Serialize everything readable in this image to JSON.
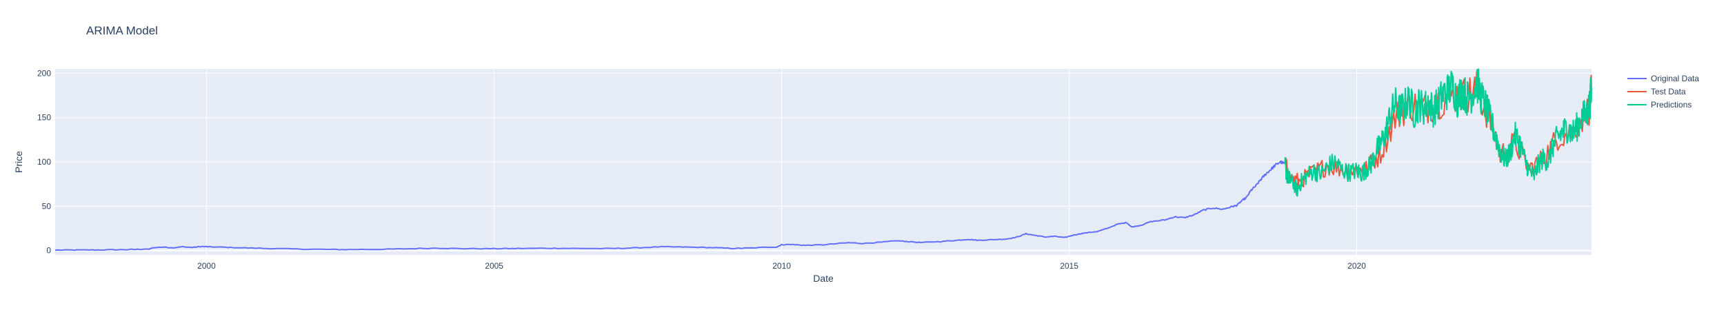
{
  "chart_data": {
    "type": "line",
    "title": "ARIMA Model",
    "xlabel": "Date",
    "ylabel": "Price",
    "x_range": [
      "1997-05-15",
      "2024-01-31"
    ],
    "ylim": [
      -5,
      205
    ],
    "x_ticks": [
      {
        "date": "2000-01-01",
        "label": "2000"
      },
      {
        "date": "2005-01-01",
        "label": "2005"
      },
      {
        "date": "2010-01-01",
        "label": "2010"
      },
      {
        "date": "2015-01-01",
        "label": "2015"
      },
      {
        "date": "2020-01-01",
        "label": "2020"
      }
    ],
    "y_ticks": [
      0,
      50,
      100,
      150,
      200
    ],
    "grid": true,
    "legend_position": "top-right",
    "series": [
      {
        "name": "Original Data",
        "color": "#636efa",
        "points": [
          [
            "1997-05-15",
            0.4
          ],
          [
            "1997-10-01",
            0.5
          ],
          [
            "1998-03-01",
            0.6
          ],
          [
            "1998-08-01",
            0.9
          ],
          [
            "1998-11-01",
            1.3
          ],
          [
            "1999-01-01",
            1.5
          ],
          [
            "1999-02-01",
            3.2
          ],
          [
            "1999-04-01",
            3.8
          ],
          [
            "1999-06-01",
            3.0
          ],
          [
            "1999-08-01",
            4.2
          ],
          [
            "1999-10-01",
            3.4
          ],
          [
            "1999-12-01",
            4.5
          ],
          [
            "2000-02-01",
            4.0
          ],
          [
            "2000-06-01",
            3.4
          ],
          [
            "2000-12-01",
            2.5
          ],
          [
            "2001-06-01",
            1.8
          ],
          [
            "2002-01-01",
            1.2
          ],
          [
            "2002-06-01",
            1.0
          ],
          [
            "2003-01-01",
            1.3
          ],
          [
            "2003-06-01",
            1.8
          ],
          [
            "2004-01-01",
            2.6
          ],
          [
            "2004-06-01",
            2.1
          ],
          [
            "2005-01-01",
            2.0
          ],
          [
            "2005-06-01",
            2.2
          ],
          [
            "2006-01-01",
            2.5
          ],
          [
            "2006-06-01",
            2.3
          ],
          [
            "2007-01-01",
            2.1
          ],
          [
            "2007-06-01",
            2.8
          ],
          [
            "2007-12-01",
            4.2
          ],
          [
            "2008-05-01",
            3.8
          ],
          [
            "2008-10-01",
            3.3
          ],
          [
            "2009-03-01",
            2.3
          ],
          [
            "2009-06-01",
            2.7
          ],
          [
            "2009-12-01",
            4.0
          ],
          [
            "2010-01-01",
            6.5
          ],
          [
            "2010-03-01",
            6.8
          ],
          [
            "2010-06-01",
            5.8
          ],
          [
            "2010-10-01",
            6.5
          ],
          [
            "2011-03-01",
            8.8
          ],
          [
            "2011-06-01",
            7.9
          ],
          [
            "2011-10-01",
            9.4
          ],
          [
            "2012-01-01",
            11.0
          ],
          [
            "2012-03-01",
            10.2
          ],
          [
            "2012-06-01",
            9.0
          ],
          [
            "2012-10-01",
            10.0
          ],
          [
            "2013-01-01",
            11.3
          ],
          [
            "2013-04-01",
            12.5
          ],
          [
            "2013-06-01",
            11.5
          ],
          [
            "2013-09-01",
            12.2
          ],
          [
            "2013-12-01",
            13.0
          ],
          [
            "2014-02-01",
            15.0
          ],
          [
            "2014-04-01",
            18.8
          ],
          [
            "2014-06-01",
            17.0
          ],
          [
            "2014-08-01",
            15.2
          ],
          [
            "2014-10-01",
            16.0
          ],
          [
            "2014-12-01",
            14.5
          ],
          [
            "2015-02-01",
            17.5
          ],
          [
            "2015-04-01",
            19.5
          ],
          [
            "2015-07-01",
            21.5
          ],
          [
            "2015-09-01",
            25.0
          ],
          [
            "2015-11-01",
            29.5
          ],
          [
            "2016-01-01",
            31.5
          ],
          [
            "2016-02-01",
            26.5
          ],
          [
            "2016-04-01",
            28.5
          ],
          [
            "2016-06-01",
            32.5
          ],
          [
            "2016-09-01",
            34.5
          ],
          [
            "2016-11-01",
            38.0
          ],
          [
            "2017-01-01",
            37.0
          ],
          [
            "2017-03-01",
            40.0
          ],
          [
            "2017-05-01",
            45.5
          ],
          [
            "2017-07-01",
            48.0
          ],
          [
            "2017-09-01",
            46.5
          ],
          [
            "2017-11-01",
            49.5
          ],
          [
            "2017-12-01",
            51.0
          ],
          [
            "2018-01-01",
            56.0
          ],
          [
            "2018-02-01",
            60.0
          ],
          [
            "2018-03-01",
            68.0
          ],
          [
            "2018-04-01",
            73.0
          ],
          [
            "2018-05-01",
            80.0
          ],
          [
            "2018-06-01",
            86.0
          ],
          [
            "2018-07-01",
            91.0
          ],
          [
            "2018-08-01",
            96.0
          ],
          [
            "2018-09-01",
            100.0
          ],
          [
            "2018-10-01",
            98.0
          ]
        ]
      },
      {
        "name": "Test Data",
        "color": "#ef553b",
        "points": [
          [
            "2018-10-01",
            98.0
          ],
          [
            "2018-11-01",
            82.0
          ],
          [
            "2019-01-01",
            78.0
          ],
          [
            "2019-04-01",
            88.0
          ],
          [
            "2019-07-01",
            96.0
          ],
          [
            "2019-10-01",
            92.0
          ],
          [
            "2020-01-01",
            90.0
          ],
          [
            "2020-03-01",
            92.0
          ],
          [
            "2020-06-01",
            110.0
          ],
          [
            "2020-09-01",
            150.0
          ],
          [
            "2020-12-01",
            165.0
          ],
          [
            "2021-03-01",
            160.0
          ],
          [
            "2021-06-01",
            168.0
          ],
          [
            "2021-09-01",
            175.0
          ],
          [
            "2021-12-01",
            176.0
          ],
          [
            "2022-02-01",
            182.0
          ],
          [
            "2022-05-01",
            145.0
          ],
          [
            "2022-07-01",
            108.0
          ],
          [
            "2022-10-01",
            122.0
          ],
          [
            "2023-01-01",
            92.0
          ],
          [
            "2023-04-01",
            104.0
          ],
          [
            "2023-07-01",
            128.0
          ],
          [
            "2023-10-01",
            134.0
          ],
          [
            "2024-01-15",
            160.0
          ],
          [
            "2024-01-31",
            180.0
          ]
        ]
      },
      {
        "name": "Predictions",
        "color": "#00cc96",
        "points": [
          [
            "2018-10-01",
            98.0
          ],
          [
            "2018-10-15",
            85.0
          ],
          [
            "2018-11-01",
            80.0
          ],
          [
            "2018-12-01",
            74.0
          ],
          [
            "2018-12-20",
            68.0
          ],
          [
            "2019-01-15",
            78.0
          ],
          [
            "2019-02-15",
            84.0
          ],
          [
            "2019-04-01",
            90.0
          ],
          [
            "2019-05-15",
            86.0
          ],
          [
            "2019-07-01",
            95.0
          ],
          [
            "2019-08-15",
            100.0
          ],
          [
            "2019-10-01",
            91.0
          ],
          [
            "2019-11-15",
            88.0
          ],
          [
            "2020-01-01",
            90.0
          ],
          [
            "2020-02-01",
            87.0
          ],
          [
            "2020-03-01",
            92.0
          ],
          [
            "2020-04-01",
            97.0
          ],
          [
            "2020-05-01",
            112.0
          ],
          [
            "2020-06-01",
            120.0
          ],
          [
            "2020-07-01",
            132.0
          ],
          [
            "2020-08-01",
            152.0
          ],
          [
            "2020-09-01",
            166.0
          ],
          [
            "2020-10-01",
            158.0
          ],
          [
            "2020-11-01",
            164.0
          ],
          [
            "2020-12-01",
            170.0
          ],
          [
            "2021-01-01",
            155.0
          ],
          [
            "2021-02-01",
            166.0
          ],
          [
            "2021-03-01",
            160.0
          ],
          [
            "2021-04-01",
            168.0
          ],
          [
            "2021-05-01",
            158.0
          ],
          [
            "2021-06-01",
            166.0
          ],
          [
            "2021-07-01",
            176.0
          ],
          [
            "2021-08-01",
            180.0
          ],
          [
            "2021-09-01",
            186.0
          ],
          [
            "2021-10-01",
            170.0
          ],
          [
            "2021-11-01",
            182.0
          ],
          [
            "2021-12-01",
            172.0
          ],
          [
            "2022-01-01",
            176.0
          ],
          [
            "2022-02-01",
            190.0
          ],
          [
            "2022-03-01",
            174.0
          ],
          [
            "2022-04-01",
            162.0
          ],
          [
            "2022-05-01",
            146.0
          ],
          [
            "2022-06-01",
            130.0
          ],
          [
            "2022-07-01",
            112.0
          ],
          [
            "2022-08-01",
            102.0
          ],
          [
            "2022-09-01",
            110.0
          ],
          [
            "2022-10-01",
            130.0
          ],
          [
            "2022-11-01",
            122.0
          ],
          [
            "2022-12-01",
            104.0
          ],
          [
            "2023-01-01",
            90.0
          ],
          [
            "2023-02-01",
            84.0
          ],
          [
            "2023-03-01",
            98.0
          ],
          [
            "2023-04-01",
            104.0
          ],
          [
            "2023-05-01",
            100.0
          ],
          [
            "2023-06-01",
            118.0
          ],
          [
            "2023-07-01",
            128.0
          ],
          [
            "2023-08-01",
            134.0
          ],
          [
            "2023-09-01",
            138.0
          ],
          [
            "2023-10-01",
            132.0
          ],
          [
            "2023-11-01",
            140.0
          ],
          [
            "2023-12-01",
            150.0
          ],
          [
            "2024-01-01",
            155.0
          ],
          [
            "2024-01-20",
            165.0
          ],
          [
            "2024-01-31",
            184.0
          ]
        ]
      }
    ]
  }
}
